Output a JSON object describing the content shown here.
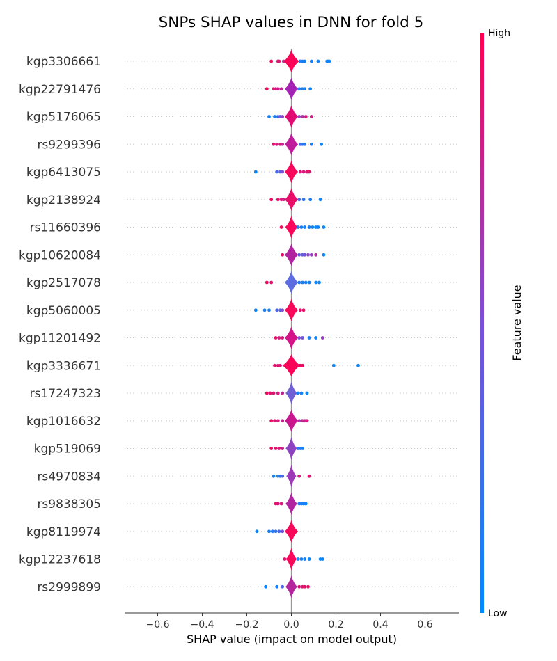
{
  "chart_data": {
    "type": "scatter",
    "subtype": "shap-violin-summary",
    "title": "SNPs SHAP values in DNN for fold 5",
    "xlabel": "SHAP value (impact on model output)",
    "xlim": [
      -0.75,
      0.75
    ],
    "xticks": [
      -0.6,
      -0.4,
      -0.2,
      0.0,
      0.2,
      0.4,
      0.6
    ],
    "xtick_labels": [
      "−0.6",
      "−0.4",
      "−0.2",
      "0.0",
      "0.2",
      "0.4",
      "0.6"
    ],
    "grid": false,
    "colorbar": {
      "title": "Feature value",
      "high_label": "High",
      "low_label": "Low",
      "high_color": "#ff0052",
      "low_color": "#008bfb"
    },
    "features": [
      {
        "name": "kgp3306661",
        "center_color": "#fb0457",
        "width": 0.035,
        "points": [
          {
            "x": -0.09,
            "c": 0.95
          },
          {
            "x": -0.06,
            "c": 0.9
          },
          {
            "x": -0.055,
            "c": 0.85
          },
          {
            "x": -0.035,
            "c": 0.8
          },
          {
            "x": 0.04,
            "c": 0.1
          },
          {
            "x": 0.05,
            "c": 0.1
          },
          {
            "x": 0.06,
            "c": 0.1
          },
          {
            "x": 0.09,
            "c": 0.1
          },
          {
            "x": 0.12,
            "c": 0.05
          },
          {
            "x": 0.16,
            "c": 0.05
          },
          {
            "x": 0.165,
            "c": 0.05
          },
          {
            "x": 0.17,
            "c": 0.05
          }
        ]
      },
      {
        "name": "kgp22791476",
        "center_color": "#a323b4",
        "width": 0.03,
        "points": [
          {
            "x": -0.11,
            "c": 0.95
          },
          {
            "x": -0.08,
            "c": 0.9
          },
          {
            "x": -0.07,
            "c": 0.85
          },
          {
            "x": -0.06,
            "c": 0.8
          },
          {
            "x": -0.045,
            "c": 0.75
          },
          {
            "x": 0.035,
            "c": 0.15
          },
          {
            "x": 0.05,
            "c": 0.1
          },
          {
            "x": 0.06,
            "c": 0.1
          },
          {
            "x": 0.085,
            "c": 0.05
          }
        ]
      },
      {
        "name": "kgp5176065",
        "center_color": "#e10a72",
        "width": 0.03,
        "points": [
          {
            "x": -0.1,
            "c": 0.1
          },
          {
            "x": -0.075,
            "c": 0.1
          },
          {
            "x": -0.06,
            "c": 0.2
          },
          {
            "x": -0.05,
            "c": 0.5
          },
          {
            "x": -0.04,
            "c": 0.55
          },
          {
            "x": 0.035,
            "c": 0.6
          },
          {
            "x": 0.05,
            "c": 0.7
          },
          {
            "x": 0.065,
            "c": 0.85
          },
          {
            "x": 0.09,
            "c": 0.8
          }
        ]
      },
      {
        "name": "rs9299396",
        "center_color": "#bf1b9a",
        "width": 0.03,
        "points": [
          {
            "x": -0.08,
            "c": 0.9
          },
          {
            "x": -0.065,
            "c": 0.85
          },
          {
            "x": -0.05,
            "c": 0.85
          },
          {
            "x": -0.04,
            "c": 0.8
          },
          {
            "x": 0.04,
            "c": 0.3
          },
          {
            "x": 0.05,
            "c": 0.2
          },
          {
            "x": 0.06,
            "c": 0.15
          },
          {
            "x": 0.09,
            "c": 0.1
          },
          {
            "x": 0.135,
            "c": 0.05
          }
        ]
      },
      {
        "name": "kgp6413075",
        "center_color": "#f8085a",
        "width": 0.03,
        "points": [
          {
            "x": -0.16,
            "c": 0.05
          },
          {
            "x": -0.065,
            "c": 0.3
          },
          {
            "x": -0.05,
            "c": 0.35
          },
          {
            "x": -0.04,
            "c": 0.5
          },
          {
            "x": 0.04,
            "c": 0.85
          },
          {
            "x": 0.055,
            "c": 0.85
          },
          {
            "x": 0.07,
            "c": 0.9
          },
          {
            "x": 0.08,
            "c": 0.9
          }
        ]
      },
      {
        "name": "kgp2138924",
        "center_color": "#e90e69",
        "width": 0.03,
        "points": [
          {
            "x": -0.09,
            "c": 0.95
          },
          {
            "x": -0.06,
            "c": 0.9
          },
          {
            "x": -0.045,
            "c": 0.85
          },
          {
            "x": -0.035,
            "c": 0.8
          },
          {
            "x": 0.035,
            "c": 0.3
          },
          {
            "x": 0.055,
            "c": 0.2
          },
          {
            "x": 0.085,
            "c": 0.1
          },
          {
            "x": 0.13,
            "c": 0.05
          }
        ]
      },
      {
        "name": "rs11660396",
        "center_color": "#fa065b",
        "width": 0.028,
        "points": [
          {
            "x": -0.045,
            "c": 0.95
          },
          {
            "x": 0.03,
            "c": 0.2
          },
          {
            "x": 0.045,
            "c": 0.1
          },
          {
            "x": 0.06,
            "c": 0.1
          },
          {
            "x": 0.08,
            "c": 0.1
          },
          {
            "x": 0.095,
            "c": 0.05
          },
          {
            "x": 0.11,
            "c": 0.05
          },
          {
            "x": 0.12,
            "c": 0.05
          },
          {
            "x": 0.145,
            "c": 0.05
          }
        ]
      },
      {
        "name": "kgp10620084",
        "center_color": "#b1229e",
        "width": 0.03,
        "points": [
          {
            "x": -0.04,
            "c": 0.9
          },
          {
            "x": 0.035,
            "c": 0.4
          },
          {
            "x": 0.05,
            "c": 0.4
          },
          {
            "x": 0.06,
            "c": 0.45
          },
          {
            "x": 0.075,
            "c": 0.55
          },
          {
            "x": 0.09,
            "c": 0.6
          },
          {
            "x": 0.11,
            "c": 0.7
          },
          {
            "x": 0.145,
            "c": 0.05
          }
        ]
      },
      {
        "name": "kgp2517078",
        "center_color": "#5d6ce0",
        "width": 0.03,
        "points": [
          {
            "x": -0.11,
            "c": 0.95
          },
          {
            "x": -0.09,
            "c": 0.9
          },
          {
            "x": 0.035,
            "c": 0.15
          },
          {
            "x": 0.05,
            "c": 0.1
          },
          {
            "x": 0.065,
            "c": 0.1
          },
          {
            "x": 0.08,
            "c": 0.1
          },
          {
            "x": 0.11,
            "c": 0.05
          },
          {
            "x": 0.125,
            "c": 0.05
          }
        ]
      },
      {
        "name": "kgp5060005",
        "center_color": "#f8085a",
        "width": 0.03,
        "points": [
          {
            "x": -0.16,
            "c": 0.05
          },
          {
            "x": -0.12,
            "c": 0.1
          },
          {
            "x": -0.1,
            "c": 0.1
          },
          {
            "x": -0.065,
            "c": 0.3
          },
          {
            "x": -0.05,
            "c": 0.35
          },
          {
            "x": -0.04,
            "c": 0.5
          },
          {
            "x": 0.04,
            "c": 0.9
          },
          {
            "x": 0.055,
            "c": 0.95
          }
        ]
      },
      {
        "name": "kgp11201492",
        "center_color": "#d4148a",
        "width": 0.03,
        "points": [
          {
            "x": -0.07,
            "c": 0.9
          },
          {
            "x": -0.055,
            "c": 0.85
          },
          {
            "x": -0.04,
            "c": 0.85
          },
          {
            "x": 0.035,
            "c": 0.5
          },
          {
            "x": 0.05,
            "c": 0.45
          },
          {
            "x": 0.08,
            "c": 0.1
          },
          {
            "x": 0.11,
            "c": 0.05
          },
          {
            "x": 0.14,
            "c": 0.6
          }
        ]
      },
      {
        "name": "kgp3336671",
        "center_color": "#fc035a",
        "width": 0.04,
        "points": [
          {
            "x": -0.075,
            "c": 0.9
          },
          {
            "x": -0.06,
            "c": 0.9
          },
          {
            "x": -0.05,
            "c": 0.85
          },
          {
            "x": 0.04,
            "c": 0.9
          },
          {
            "x": 0.05,
            "c": 0.95
          },
          {
            "x": 0.19,
            "c": 0.05
          },
          {
            "x": 0.3,
            "c": 0.05
          }
        ]
      },
      {
        "name": "rs17247323",
        "center_color": "#6f61d4",
        "width": 0.026,
        "points": [
          {
            "x": -0.11,
            "c": 0.95
          },
          {
            "x": -0.095,
            "c": 0.9
          },
          {
            "x": -0.08,
            "c": 0.9
          },
          {
            "x": -0.06,
            "c": 0.85
          },
          {
            "x": -0.04,
            "c": 0.75
          },
          {
            "x": 0.03,
            "c": 0.1
          },
          {
            "x": 0.045,
            "c": 0.1
          },
          {
            "x": 0.07,
            "c": 0.05
          }
        ]
      },
      {
        "name": "kgp1016632",
        "center_color": "#c8168f",
        "width": 0.03,
        "points": [
          {
            "x": -0.09,
            "c": 0.95
          },
          {
            "x": -0.075,
            "c": 0.9
          },
          {
            "x": -0.06,
            "c": 0.85
          },
          {
            "x": -0.04,
            "c": 0.8
          },
          {
            "x": 0.035,
            "c": 0.7
          },
          {
            "x": 0.05,
            "c": 0.75
          },
          {
            "x": 0.06,
            "c": 0.8
          },
          {
            "x": 0.07,
            "c": 0.85
          }
        ]
      },
      {
        "name": "kgp519069",
        "center_color": "#8e44c0",
        "width": 0.026,
        "points": [
          {
            "x": -0.09,
            "c": 0.95
          },
          {
            "x": -0.07,
            "c": 0.9
          },
          {
            "x": -0.055,
            "c": 0.85
          },
          {
            "x": -0.04,
            "c": 0.8
          },
          {
            "x": 0.03,
            "c": 0.2
          },
          {
            "x": 0.04,
            "c": 0.15
          },
          {
            "x": 0.05,
            "c": 0.1
          }
        ]
      },
      {
        "name": "rs4970834",
        "center_color": "#9e3ab8",
        "width": 0.022,
        "points": [
          {
            "x": -0.08,
            "c": 0.1
          },
          {
            "x": -0.06,
            "c": 0.15
          },
          {
            "x": -0.05,
            "c": 0.2
          },
          {
            "x": -0.04,
            "c": 0.3
          },
          {
            "x": 0.035,
            "c": 0.85
          },
          {
            "x": 0.08,
            "c": 0.9
          }
        ]
      },
      {
        "name": "rs9838305",
        "center_color": "#b225a1",
        "width": 0.026,
        "points": [
          {
            "x": -0.07,
            "c": 0.9
          },
          {
            "x": -0.06,
            "c": 0.85
          },
          {
            "x": -0.045,
            "c": 0.85
          },
          {
            "x": 0.035,
            "c": 0.2
          },
          {
            "x": 0.045,
            "c": 0.1
          },
          {
            "x": 0.055,
            "c": 0.1
          },
          {
            "x": 0.065,
            "c": 0.05
          }
        ]
      },
      {
        "name": "kgp8119974",
        "center_color": "#f8085a",
        "width": 0.03,
        "points": [
          {
            "x": -0.155,
            "c": 0.05
          },
          {
            "x": -0.1,
            "c": 0.1
          },
          {
            "x": -0.085,
            "c": 0.15
          },
          {
            "x": -0.07,
            "c": 0.2
          },
          {
            "x": -0.055,
            "c": 0.3
          },
          {
            "x": -0.04,
            "c": 0.45
          }
        ]
      },
      {
        "name": "kgp12237618",
        "center_color": "#fa065b",
        "width": 0.024,
        "points": [
          {
            "x": -0.03,
            "c": 0.9
          },
          {
            "x": 0.03,
            "c": 0.1
          },
          {
            "x": 0.045,
            "c": 0.1
          },
          {
            "x": 0.06,
            "c": 0.1
          },
          {
            "x": 0.08,
            "c": 0.05
          },
          {
            "x": 0.13,
            "c": 0.05
          },
          {
            "x": 0.14,
            "c": 0.05
          }
        ]
      },
      {
        "name": "rs2999899",
        "center_color": "#b4259e",
        "width": 0.026,
        "points": [
          {
            "x": -0.115,
            "c": 0.05
          },
          {
            "x": -0.065,
            "c": 0.1
          },
          {
            "x": -0.04,
            "c": 0.3
          },
          {
            "x": 0.035,
            "c": 0.85
          },
          {
            "x": 0.05,
            "c": 0.9
          },
          {
            "x": 0.06,
            "c": 0.9
          },
          {
            "x": 0.075,
            "c": 0.95
          }
        ]
      }
    ]
  }
}
